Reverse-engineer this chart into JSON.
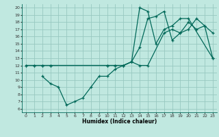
{
  "xlabel": "Humidex (Indice chaleur)",
  "bg_color": "#c0e8e0",
  "grid_color": "#98c8c0",
  "line_color": "#006858",
  "xlim": [
    -0.5,
    23.5
  ],
  "ylim": [
    5.5,
    20.5
  ],
  "xticks": [
    0,
    1,
    2,
    3,
    4,
    5,
    6,
    7,
    8,
    9,
    10,
    11,
    12,
    13,
    14,
    15,
    16,
    17,
    18,
    19,
    20,
    21,
    22,
    23
  ],
  "yticks": [
    6,
    7,
    8,
    9,
    10,
    11,
    12,
    13,
    14,
    15,
    16,
    17,
    18,
    19,
    20
  ],
  "line1_x": [
    0,
    1,
    2,
    3,
    10,
    11,
    12,
    13,
    14,
    15,
    16,
    17,
    18,
    19,
    20,
    21,
    22,
    23
  ],
  "line1_y": [
    12,
    12,
    12,
    12,
    12,
    12,
    12,
    12.5,
    14.5,
    18.5,
    18.8,
    19.5,
    15.5,
    16.5,
    17.0,
    18.5,
    17.5,
    16.5
  ],
  "line2_x": [
    0,
    1,
    2,
    3,
    10,
    11,
    12,
    13,
    14,
    15,
    16,
    17,
    18,
    19,
    20,
    23
  ],
  "line2_y": [
    12,
    12,
    12,
    12,
    12,
    12,
    12,
    12.5,
    20.0,
    19.5,
    15.0,
    17.0,
    17.5,
    18.5,
    18.5,
    13.0
  ],
  "line3_x": [
    2,
    3,
    4,
    5,
    6,
    7,
    8,
    9,
    10,
    11,
    12,
    13,
    14,
    15,
    17,
    18,
    19,
    20,
    21,
    22,
    23
  ],
  "line3_y": [
    10.5,
    9.5,
    9.0,
    6.5,
    7.0,
    7.5,
    9.0,
    10.5,
    10.5,
    11.5,
    12.0,
    12.5,
    12.0,
    12.0,
    16.5,
    17.0,
    16.5,
    18.0,
    17.0,
    17.5,
    13.0
  ]
}
